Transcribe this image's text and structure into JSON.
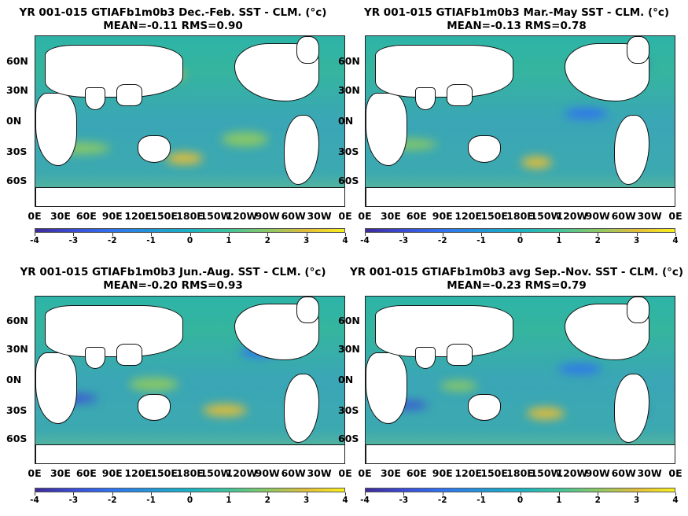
{
  "panels": [
    {
      "title": "YR 001-015 GTIAFb1m0b3  Dec.-Feb. SST - CLM. (°c)",
      "subtitle": "MEAN=-0.11   RMS=0.90"
    },
    {
      "title": "YR 001-015 GTIAFb1m0b3 Mar.-May SST - CLM. (°c)",
      "subtitle": "MEAN=-0.13   RMS=0.78"
    },
    {
      "title": "YR 001-015 GTIAFb1m0b3 Jun.-Aug. SST - CLM. (°c)",
      "subtitle": "MEAN=-0.20   RMS=0.93"
    },
    {
      "title": "YR 001-015 GTIAFb1m0b3 avg Sep.-Nov. SST - CLM. (°c)",
      "subtitle": "MEAN=-0.23   RMS=0.79"
    }
  ],
  "chart_data": {
    "type": "heatmap",
    "count": 4,
    "variable": "SST - CLM.",
    "units": "°c",
    "y_ticks": [
      "60N",
      "30N",
      "0N",
      "30S",
      "60S"
    ],
    "x_ticks": [
      "0E",
      "30E",
      "60E",
      "90E",
      "120E",
      "150E",
      "180E",
      "150W",
      "120W",
      "90W",
      "60W",
      "30W",
      "0E"
    ],
    "colorbar_ticks": [
      "-4",
      "-3",
      "-2",
      "-1",
      "0",
      "1",
      "2",
      "3",
      "4"
    ],
    "colorbar_range": [
      -4,
      4
    ],
    "colormap": "parula",
    "seasons": [
      "Dec.-Feb.",
      "Mar.-May",
      "Jun.-Aug.",
      "Sep.-Nov."
    ],
    "stats": [
      {
        "mean": -0.11,
        "rms": 0.9
      },
      {
        "mean": -0.13,
        "rms": 0.78
      },
      {
        "mean": -0.2,
        "rms": 0.93
      },
      {
        "mean": -0.23,
        "rms": 0.79
      }
    ]
  }
}
